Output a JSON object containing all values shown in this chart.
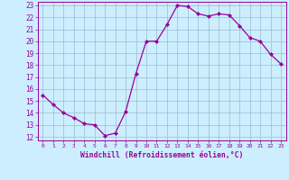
{
  "x": [
    0,
    1,
    2,
    3,
    4,
    5,
    6,
    7,
    8,
    9,
    10,
    11,
    12,
    13,
    14,
    15,
    16,
    17,
    18,
    19,
    20,
    21,
    22,
    23
  ],
  "y": [
    15.5,
    14.7,
    14.0,
    13.6,
    13.1,
    13.0,
    12.1,
    12.3,
    14.1,
    17.3,
    20.0,
    20.0,
    21.4,
    23.0,
    22.9,
    22.3,
    22.1,
    22.3,
    22.2,
    21.3,
    20.3,
    20.0,
    18.9,
    18.1
  ],
  "line_color": "#990099",
  "marker": "D",
  "marker_size": 2.0,
  "bg_color": "#cceeff",
  "grid_color": "#99bbcc",
  "xlabel": "Windchill (Refroidissement éolien,°C)",
  "xlabel_color": "#990099",
  "tick_color": "#990099",
  "ylim": [
    12,
    23
  ],
  "xlim": [
    -0.5,
    23.5
  ],
  "yticks": [
    12,
    13,
    14,
    15,
    16,
    17,
    18,
    19,
    20,
    21,
    22,
    23
  ],
  "xticks": [
    0,
    1,
    2,
    3,
    4,
    5,
    6,
    7,
    8,
    9,
    10,
    11,
    12,
    13,
    14,
    15,
    16,
    17,
    18,
    19,
    20,
    21,
    22,
    23
  ]
}
